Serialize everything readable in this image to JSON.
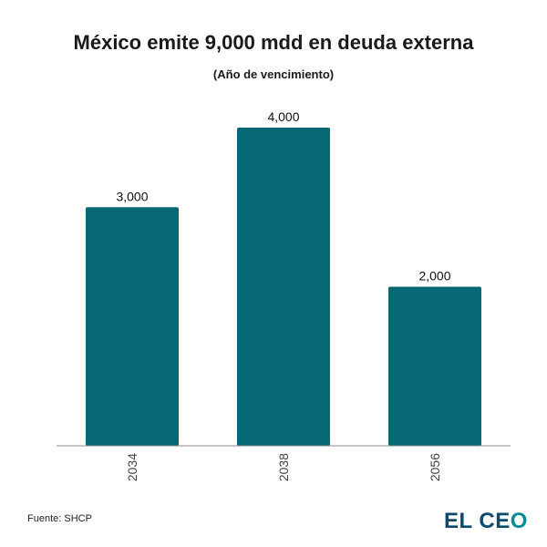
{
  "chart_data": {
    "type": "bar",
    "title": "México emite 9,000 mdd en deuda externa",
    "subtitle": "(Año de vencimiento)",
    "categories": [
      "2034",
      "2038",
      "2056"
    ],
    "values": [
      3000,
      4000,
      2000
    ],
    "data_labels": [
      "3,000",
      "4,000",
      "2,000"
    ],
    "xlabel": "",
    "ylabel": "",
    "ylim": [
      0,
      4000
    ],
    "grid": false,
    "bar_color": "#056872"
  },
  "footer": {
    "source": "Fuente: SHCP",
    "logo_text": "EL CEO"
  },
  "colors": {
    "logo_dark": "#0d4a6b",
    "logo_accent": "#0a8a96"
  }
}
